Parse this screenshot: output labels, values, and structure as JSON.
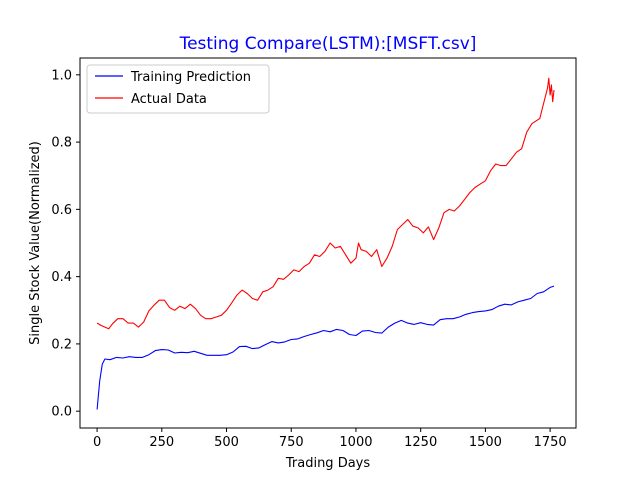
{
  "chart_data": {
    "type": "line",
    "title": "Testing Compare(LSTM):[MSFT.csv]",
    "title_color": "#0000ff",
    "xlabel": "Trading Days",
    "ylabel": "Single Stock Value(Normalized)",
    "xlim": [
      -66,
      1850
    ],
    "ylim": [
      -0.05,
      1.05
    ],
    "xticks": [
      0,
      250,
      500,
      750,
      1000,
      1250,
      1500,
      1750
    ],
    "xtick_labels": [
      "0",
      "250",
      "500",
      "750",
      "1000",
      "1250",
      "1500",
      "1750"
    ],
    "yticks": [
      0.0,
      0.2,
      0.4,
      0.6,
      0.8,
      1.0
    ],
    "ytick_labels": [
      "0.0",
      "0.2",
      "0.4",
      "0.6",
      "0.8",
      "1.0"
    ],
    "grid": false,
    "legend_position": "top-left",
    "series": [
      {
        "name": "Training Prediction",
        "color": "#0000ff",
        "x": [
          0,
          10,
          20,
          30,
          50,
          75,
          100,
          125,
          150,
          175,
          200,
          225,
          250,
          275,
          300,
          325,
          350,
          375,
          400,
          425,
          450,
          475,
          500,
          525,
          550,
          575,
          600,
          625,
          650,
          675,
          700,
          725,
          750,
          775,
          800,
          825,
          850,
          875,
          900,
          925,
          950,
          975,
          1000,
          1025,
          1050,
          1075,
          1100,
          1125,
          1150,
          1175,
          1200,
          1225,
          1250,
          1275,
          1300,
          1325,
          1350,
          1375,
          1400,
          1425,
          1450,
          1475,
          1500,
          1525,
          1550,
          1575,
          1600,
          1625,
          1650,
          1675,
          1700,
          1725,
          1750,
          1765
        ],
        "values": [
          0.005,
          0.09,
          0.14,
          0.155,
          0.153,
          0.16,
          0.158,
          0.162,
          0.16,
          0.16,
          0.168,
          0.18,
          0.183,
          0.182,
          0.173,
          0.175,
          0.174,
          0.178,
          0.172,
          0.166,
          0.166,
          0.166,
          0.168,
          0.176,
          0.192,
          0.193,
          0.186,
          0.188,
          0.198,
          0.207,
          0.203,
          0.206,
          0.213,
          0.215,
          0.222,
          0.228,
          0.233,
          0.24,
          0.236,
          0.243,
          0.24,
          0.228,
          0.225,
          0.238,
          0.24,
          0.234,
          0.232,
          0.25,
          0.262,
          0.27,
          0.262,
          0.258,
          0.263,
          0.258,
          0.256,
          0.272,
          0.275,
          0.275,
          0.28,
          0.288,
          0.293,
          0.296,
          0.298,
          0.302,
          0.312,
          0.318,
          0.316,
          0.325,
          0.33,
          0.335,
          0.35,
          0.355,
          0.368,
          0.372
        ]
      },
      {
        "name": "Actual Data",
        "color": "#ff0000",
        "x": [
          0,
          15,
          30,
          45,
          60,
          80,
          100,
          120,
          140,
          160,
          180,
          200,
          220,
          240,
          260,
          280,
          300,
          320,
          340,
          360,
          380,
          400,
          420,
          440,
          460,
          480,
          500,
          520,
          540,
          560,
          580,
          600,
          620,
          640,
          660,
          680,
          700,
          720,
          740,
          760,
          780,
          800,
          820,
          840,
          860,
          880,
          900,
          920,
          940,
          960,
          980,
          1000,
          1010,
          1020,
          1040,
          1060,
          1080,
          1100,
          1120,
          1140,
          1160,
          1180,
          1200,
          1220,
          1240,
          1260,
          1280,
          1300,
          1320,
          1340,
          1360,
          1380,
          1400,
          1420,
          1440,
          1460,
          1480,
          1500,
          1520,
          1540,
          1560,
          1580,
          1600,
          1620,
          1640,
          1660,
          1680,
          1700,
          1710,
          1720,
          1730,
          1740,
          1745,
          1750,
          1755,
          1760,
          1765
        ],
        "values": [
          0.262,
          0.255,
          0.25,
          0.245,
          0.26,
          0.275,
          0.275,
          0.262,
          0.262,
          0.25,
          0.265,
          0.298,
          0.315,
          0.33,
          0.33,
          0.308,
          0.3,
          0.312,
          0.305,
          0.318,
          0.305,
          0.285,
          0.275,
          0.275,
          0.28,
          0.285,
          0.3,
          0.322,
          0.345,
          0.36,
          0.35,
          0.335,
          0.33,
          0.355,
          0.36,
          0.37,
          0.395,
          0.392,
          0.405,
          0.42,
          0.415,
          0.43,
          0.44,
          0.465,
          0.46,
          0.475,
          0.5,
          0.485,
          0.49,
          0.465,
          0.44,
          0.455,
          0.5,
          0.48,
          0.475,
          0.46,
          0.48,
          0.43,
          0.455,
          0.49,
          0.54,
          0.555,
          0.57,
          0.55,
          0.545,
          0.53,
          0.548,
          0.51,
          0.545,
          0.59,
          0.6,
          0.595,
          0.61,
          0.63,
          0.65,
          0.665,
          0.675,
          0.685,
          0.715,
          0.735,
          0.73,
          0.73,
          0.75,
          0.77,
          0.78,
          0.83,
          0.855,
          0.865,
          0.87,
          0.9,
          0.93,
          0.96,
          0.99,
          0.94,
          0.97,
          0.92,
          0.955
        ]
      }
    ]
  }
}
